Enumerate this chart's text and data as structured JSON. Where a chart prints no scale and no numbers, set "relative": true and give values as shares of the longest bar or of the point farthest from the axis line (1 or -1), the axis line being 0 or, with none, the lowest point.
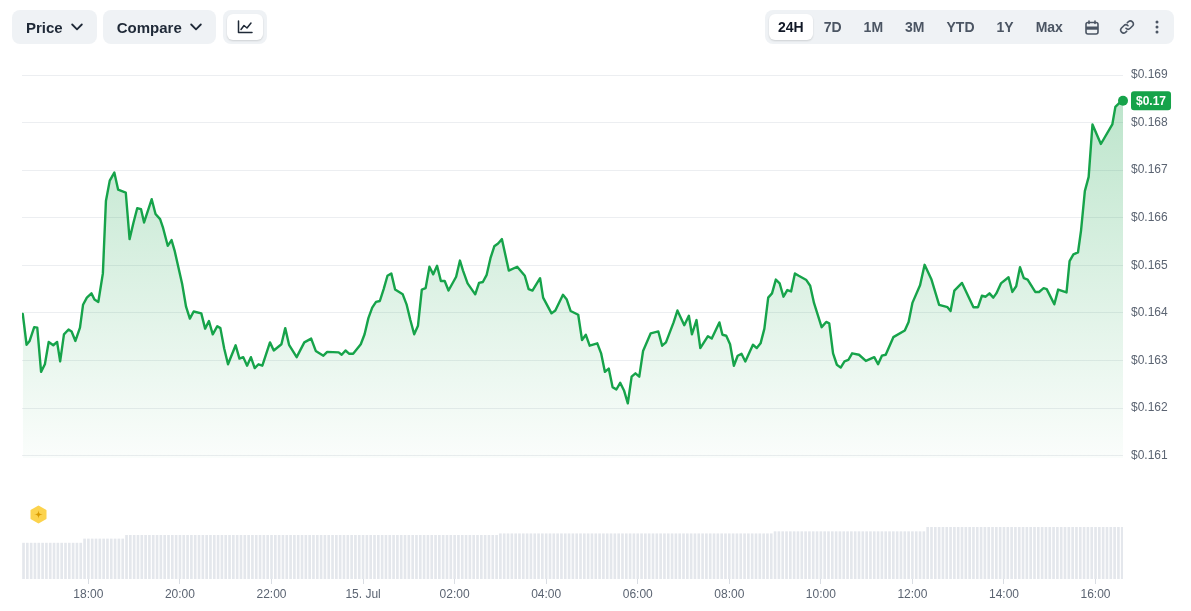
{
  "chart_data": [
    {
      "type": "area",
      "color": "#16a34a",
      "x": [
        "--07-14T16:34",
        "--07-14T16:39",
        "--07-14T16:43",
        "--07-14T16:49",
        "--07-14T16:53",
        "--07-14T16:58",
        "--07-14T17:03",
        "--07-14T17:08",
        "--07-14T17:14",
        "--07-14T17:19",
        "--07-14T17:23",
        "--07-14T17:28",
        "--07-14T17:34",
        "--07-14T17:38",
        "--07-14T17:43",
        "--07-14T17:49",
        "--07-14T17:53",
        "--07-14T17:58",
        "--07-14T18:04",
        "--07-14T18:08",
        "--07-14T18:13",
        "--07-14T18:19",
        "--07-14T18:23",
        "--07-14T18:28",
        "--07-14T18:34",
        "--07-14T18:39",
        "--07-14T18:49",
        "--07-14T18:54",
        "--07-14T18:59",
        "--07-14T19:04",
        "--07-14T19:09",
        "--07-14T19:13",
        "--07-14T19:23",
        "--07-14T19:28",
        "--07-14T19:34",
        "--07-14T19:38",
        "--07-14T19:44",
        "--07-14T19:49",
        "--07-14T19:53",
        "--07-14T20:03",
        "--07-14T20:08",
        "--07-14T20:13",
        "--07-14T20:18",
        "--07-14T20:28",
        "--07-14T20:33",
        "--07-14T20:38",
        "--07-14T20:43",
        "--07-14T20:49",
        "--07-14T20:53",
        "--07-14T20:58",
        "--07-14T21:03",
        "--07-14T21:13",
        "--07-14T21:18",
        "--07-14T21:23",
        "--07-14T21:28",
        "--07-14T21:33",
        "--07-14T21:38",
        "--07-14T21:43",
        "--07-14T21:48",
        "--07-14T21:58",
        "--07-14T22:03",
        "--07-14T22:13",
        "--07-14T22:18",
        "--07-14T22:23",
        "--07-14T22:33",
        "--07-14T22:43",
        "--07-14T22:52",
        "--07-14T22:58",
        "--07-14T23:08",
        "--07-14T23:13",
        "--07-14T23:28",
        "--07-14T23:32",
        "--07-14T23:37",
        "--07-14T23:42",
        "--07-14T23:47",
        "--07-14T23:57",
        "--07-15T00:02",
        "--07-15T00:07",
        "--07-15T00:12",
        "--07-15T00:17",
        "--07-15T00:22",
        "--07-15T00:27",
        "--07-15T00:32",
        "--07-15T00:37",
        "--07-15T00:42",
        "--07-15T00:52",
        "--07-15T00:57",
        "--07-15T01:02",
        "--07-15T01:07",
        "--07-15T01:12",
        "--07-15T01:17",
        "--07-15T01:22",
        "--07-15T01:27",
        "--07-15T01:32",
        "--07-15T01:37",
        "--07-15T01:42",
        "--07-15T01:47",
        "--07-15T01:52",
        "--07-15T02:02",
        "--07-15T02:07",
        "--07-15T02:11",
        "--07-15T02:17",
        "--07-15T02:27",
        "--07-15T02:32",
        "--07-15T02:37",
        "--07-15T02:42",
        "--07-15T02:47",
        "--07-15T02:52",
        "--07-15T02:57",
        "--07-15T03:02",
        "--07-15T03:11",
        "--07-15T03:22",
        "--07-15T03:32",
        "--07-15T03:37",
        "--07-15T03:42",
        "--07-15T03:52",
        "--07-15T03:56",
        "--07-15T04:07",
        "--07-15T04:12",
        "--07-15T04:22",
        "--07-15T04:27",
        "--07-15T04:32",
        "--07-15T04:42",
        "--07-15T04:47",
        "--07-15T04:52",
        "--07-15T04:57",
        "--07-15T05:07",
        "--07-15T05:12",
        "--07-15T05:17",
        "--07-15T05:22",
        "--07-15T05:27",
        "--07-15T05:32",
        "--07-15T05:37",
        "--07-15T05:42",
        "--07-15T05:47",
        "--07-15T05:52",
        "--07-15T05:57",
        "--07-15T06:02",
        "--07-15T06:07",
        "--07-15T06:17",
        "--07-15T06:27",
        "--07-15T06:32",
        "--07-15T06:37",
        "--07-15T06:47",
        "--07-15T06:52",
        "--07-15T07:01",
        "--07-15T07:07",
        "--07-15T07:11",
        "--07-15T07:17",
        "--07-15T07:22",
        "--07-15T07:32",
        "--07-15T07:37",
        "--07-15T07:47",
        "--07-15T07:51",
        "--07-15T07:56",
        "--07-15T08:01",
        "--07-15T08:06",
        "--07-15T08:11",
        "--07-15T08:16",
        "--07-15T08:21",
        "--07-15T08:31",
        "--07-15T08:36",
        "--07-15T08:41",
        "--07-15T08:46",
        "--07-15T08:51",
        "--07-15T08:56",
        "--07-15T09:01",
        "--07-15T09:06",
        "--07-15T09:11",
        "--07-15T09:16",
        "--07-15T09:21",
        "--07-15T09:26",
        "--07-15T09:31",
        "--07-15T09:41",
        "--07-15T09:46",
        "--07-15T09:51",
        "--07-15T10:01",
        "--07-15T10:07",
        "--07-15T10:11",
        "--07-15T10:16",
        "--07-15T10:21",
        "--07-15T10:26",
        "--07-15T10:31",
        "--07-15T10:36",
        "--07-15T10:41",
        "--07-15T10:50",
        "--07-15T10:59",
        "--07-15T11:10",
        "--07-15T11:15",
        "--07-15T11:20",
        "--07-15T11:25",
        "--07-15T11:35",
        "--07-15T11:50",
        "--07-15T11:55",
        "--07-15T12:00",
        "--07-15T12:10",
        "--07-15T12:16",
        "--07-15T12:25",
        "--07-15T12:35",
        "--07-15T12:46",
        "--07-15T12:50",
        "--07-15T12:55",
        "--07-15T13:05",
        "--07-15T13:20",
        "--07-15T13:26",
        "--07-15T13:31",
        "--07-15T13:36",
        "--07-15T13:41",
        "--07-15T13:46",
        "--07-15T13:50",
        "--07-15T13:56",
        "--07-15T14:06",
        "--07-15T14:11",
        "--07-15T14:16",
        "--07-15T14:21",
        "--07-15T14:26",
        "--07-15T14:31",
        "--07-15T14:41",
        "--07-15T14:46",
        "--07-15T14:52",
        "--07-15T14:56",
        "--07-15T15:06",
        "--07-15T15:11",
        "--07-15T15:22",
        "--07-15T15:26",
        "--07-15T15:31",
        "--07-15T15:37",
        "--07-15T15:41",
        "--07-15T15:46",
        "--07-15T15:51",
        "--07-15T15:56",
        "--07-15T16:07",
        "--07-15T16:22",
        "--07-15T16:26",
        "--07-15T16:31",
        "--07-15T16:36"
      ],
      "values": [
        0.16398,
        0.16333,
        0.16341,
        0.1637,
        0.16369,
        0.16276,
        0.16292,
        0.16339,
        0.16332,
        0.16339,
        0.16298,
        0.16355,
        0.16365,
        0.16361,
        0.16341,
        0.16369,
        0.16417,
        0.16432,
        0.16441,
        0.16428,
        0.16423,
        0.16483,
        0.16635,
        0.16678,
        0.16695,
        0.16659,
        0.16653,
        0.16555,
        0.16589,
        0.1662,
        0.16618,
        0.1659,
        0.16639,
        0.16608,
        0.16597,
        0.16578,
        0.16541,
        0.16553,
        0.16531,
        0.1646,
        0.16413,
        0.16388,
        0.16403,
        0.16399,
        0.16367,
        0.16383,
        0.16355,
        0.16372,
        0.16368,
        0.16325,
        0.16292,
        0.16332,
        0.16304,
        0.16307,
        0.16289,
        0.16307,
        0.16284,
        0.16292,
        0.16289,
        0.16338,
        0.16321,
        0.16334,
        0.16368,
        0.16333,
        0.16307,
        0.16338,
        0.16346,
        0.1632,
        0.1631,
        0.16318,
        0.16317,
        0.16312,
        0.16321,
        0.16314,
        0.16314,
        0.16334,
        0.16355,
        0.16389,
        0.16411,
        0.16423,
        0.16425,
        0.1645,
        0.16478,
        0.16483,
        0.16449,
        0.16439,
        0.16418,
        0.16385,
        0.16355,
        0.16373,
        0.16449,
        0.16452,
        0.16497,
        0.16481,
        0.16499,
        0.16467,
        0.16467,
        0.16447,
        0.16476,
        0.1651,
        0.16489,
        0.16462,
        0.16439,
        0.16463,
        0.16465,
        0.1648,
        0.16515,
        0.1654,
        0.16546,
        0.16555,
        0.16489,
        0.16497,
        0.16478,
        0.1645,
        0.16447,
        0.16473,
        0.16432,
        0.16399,
        0.16405,
        0.16438,
        0.16428,
        0.16404,
        0.16396,
        0.16343,
        0.16354,
        0.16331,
        0.16336,
        0.16315,
        0.16276,
        0.16283,
        0.16244,
        0.16239,
        0.16253,
        0.16237,
        0.1621,
        0.16266,
        0.16273,
        0.16266,
        0.1632,
        0.16357,
        0.16361,
        0.16331,
        0.16338,
        0.1638,
        0.16405,
        0.16374,
        0.16394,
        0.16355,
        0.16385,
        0.16326,
        0.16351,
        0.16346,
        0.1638,
        0.16354,
        0.16352,
        0.16334,
        0.16289,
        0.1631,
        0.16314,
        0.16298,
        0.16333,
        0.16326,
        0.16336,
        0.16367,
        0.16432,
        0.16441,
        0.1647,
        0.16462,
        0.16434,
        0.16448,
        0.16445,
        0.16483,
        0.16478,
        0.16469,
        0.16457,
        0.16421,
        0.1637,
        0.16381,
        0.16378,
        0.16315,
        0.16291,
        0.16285,
        0.16298,
        0.16301,
        0.16315,
        0.16312,
        0.16299,
        0.16307,
        0.16292,
        0.1631,
        0.16312,
        0.16349,
        0.16363,
        0.16381,
        0.16421,
        0.16458,
        0.16501,
        0.1647,
        0.16417,
        0.16412,
        0.16404,
        0.16447,
        0.16463,
        0.16412,
        0.16412,
        0.16436,
        0.16434,
        0.16441,
        0.16432,
        0.16441,
        0.16462,
        0.16475,
        0.16444,
        0.16456,
        0.16496,
        0.16473,
        0.1647,
        0.16444,
        0.16444,
        0.16452,
        0.1645,
        0.16418,
        0.16449,
        0.16443,
        0.16509,
        0.16523,
        0.16527,
        0.16573,
        0.16656,
        0.16686,
        0.16796,
        0.16755,
        0.16796,
        0.16833,
        0.16841,
        0.16846
      ],
      "xlim": [
        "--07-14T16:33",
        "--07-15T16:36"
      ],
      "ylim": [
        0.16095,
        0.169
      ],
      "yticks": [
        {
          "value": 0.161,
          "label": "$0.161"
        },
        {
          "value": 0.162,
          "label": "$0.162"
        },
        {
          "value": 0.163,
          "label": "$0.163"
        },
        {
          "value": 0.164,
          "label": "$0.164"
        },
        {
          "value": 0.165,
          "label": "$0.165"
        },
        {
          "value": 0.166,
          "label": "$0.166"
        },
        {
          "value": 0.167,
          "label": "$0.167"
        },
        {
          "value": 0.168,
          "label": "$0.168"
        },
        {
          "value": 0.169,
          "label": "$0.169"
        }
      ],
      "grid": "y",
      "tick_labels": "y",
      "annotations": [
        "Price",
        "Compare",
        "24H",
        "7D",
        "1M",
        "3M",
        "YTD",
        "1Y",
        "Max",
        {
          "text": "$0.17",
          "x": "--07-15T16:36",
          "y": 0.16846
        }
      ]
    },
    {
      "type": "bar",
      "relative": true,
      "color": "#e4e7ec",
      "x": [
        "--07-14T16:35",
        "--07-14T16:40",
        "--07-14T16:45",
        "--07-14T16:50",
        "--07-14T16:55",
        "--07-14T17:00",
        "--07-14T17:05",
        "--07-14T17:10",
        "--07-14T17:15",
        "--07-14T17:20",
        "--07-14T17:25",
        "--07-14T17:30",
        "--07-14T17:35",
        "--07-14T17:40",
        "--07-14T17:45",
        "--07-14T17:50",
        "--07-14T17:55",
        "--07-14T18:00",
        "--07-14T18:05",
        "--07-14T18:10",
        "--07-14T18:15",
        "--07-14T18:20",
        "--07-14T18:25",
        "--07-14T18:30",
        "--07-14T18:35",
        "--07-14T18:40",
        "--07-14T18:45",
        "--07-14T18:50",
        "--07-14T18:55",
        "--07-14T19:00",
        "--07-14T19:05",
        "--07-14T19:10",
        "--07-14T19:15",
        "--07-14T19:20",
        "--07-14T19:25",
        "--07-14T19:30",
        "--07-14T19:35",
        "--07-14T19:40",
        "--07-14T19:45",
        "--07-14T19:50",
        "--07-14T19:55",
        "--07-14T20:00",
        "--07-14T20:05",
        "--07-14T20:10",
        "--07-14T20:15",
        "--07-14T20:20",
        "--07-14T20:25",
        "--07-14T20:30",
        "--07-14T20:35",
        "--07-14T20:40",
        "--07-14T20:45",
        "--07-14T20:50",
        "--07-14T20:55",
        "--07-14T21:00",
        "--07-14T21:05",
        "--07-14T21:10",
        "--07-14T21:15",
        "--07-14T21:20",
        "--07-14T21:25",
        "--07-14T21:30",
        "--07-14T21:35",
        "--07-14T21:40",
        "--07-14T21:45",
        "--07-14T21:50",
        "--07-14T21:55",
        "--07-14T22:00",
        "--07-14T22:05",
        "--07-14T22:10",
        "--07-14T22:15",
        "--07-14T22:20",
        "--07-14T22:25",
        "--07-14T22:30",
        "--07-14T22:35",
        "--07-14T22:40",
        "--07-14T22:45",
        "--07-14T22:50",
        "--07-14T22:55",
        "--07-14T23:00",
        "--07-14T23:05",
        "--07-14T23:10",
        "--07-14T23:15",
        "--07-14T23:20",
        "--07-14T23:25",
        "--07-14T23:30",
        "--07-14T23:35",
        "--07-14T23:40",
        "--07-14T23:45",
        "--07-14T23:50",
        "--07-14T23:55",
        "--07-15T00:00",
        "--07-15T00:05",
        "--07-15T00:10",
        "--07-15T00:15",
        "--07-15T00:20",
        "--07-15T00:25",
        "--07-15T00:30",
        "--07-15T00:35",
        "--07-15T00:40",
        "--07-15T00:45",
        "--07-15T00:50",
        "--07-15T00:55",
        "--07-15T01:00",
        "--07-15T01:05",
        "--07-15T01:10",
        "--07-15T01:15",
        "--07-15T01:20",
        "--07-15T01:25",
        "--07-15T01:30",
        "--07-15T01:35",
        "--07-15T01:40",
        "--07-15T01:45",
        "--07-15T01:50",
        "--07-15T01:55",
        "--07-15T02:00",
        "--07-15T02:05",
        "--07-15T02:10",
        "--07-15T02:15",
        "--07-15T02:20",
        "--07-15T02:25",
        "--07-15T02:30",
        "--07-15T02:35",
        "--07-15T02:40",
        "--07-15T02:45",
        "--07-15T02:50",
        "--07-15T02:55",
        "--07-15T03:00",
        "--07-15T03:05",
        "--07-15T03:10",
        "--07-15T03:15",
        "--07-15T03:20",
        "--07-15T03:25",
        "--07-15T03:30",
        "--07-15T03:35",
        "--07-15T03:40",
        "--07-15T03:45",
        "--07-15T03:50",
        "--07-15T03:55",
        "--07-15T04:00",
        "--07-15T04:05",
        "--07-15T04:10",
        "--07-15T04:15",
        "--07-15T04:20",
        "--07-15T04:25",
        "--07-15T04:30",
        "--07-15T04:35",
        "--07-15T04:40",
        "--07-15T04:45",
        "--07-15T04:50",
        "--07-15T04:55",
        "--07-15T05:00",
        "--07-15T05:05",
        "--07-15T05:10",
        "--07-15T05:15",
        "--07-15T05:20",
        "--07-15T05:25",
        "--07-15T05:30",
        "--07-15T05:35",
        "--07-15T05:40",
        "--07-15T05:45",
        "--07-15T05:50",
        "--07-15T05:55",
        "--07-15T06:00",
        "--07-15T06:05",
        "--07-15T06:10",
        "--07-15T06:15",
        "--07-15T06:20",
        "--07-15T06:25",
        "--07-15T06:30",
        "--07-15T06:35",
        "--07-15T06:40",
        "--07-15T06:45",
        "--07-15T06:50",
        "--07-15T06:55",
        "--07-15T07:00",
        "--07-15T07:05",
        "--07-15T07:10",
        "--07-15T07:15",
        "--07-15T07:20",
        "--07-15T07:25",
        "--07-15T07:30",
        "--07-15T07:35",
        "--07-15T07:40",
        "--07-15T07:45",
        "--07-15T07:50",
        "--07-15T07:55",
        "--07-15T08:00",
        "--07-15T08:05",
        "--07-15T08:10",
        "--07-15T08:15",
        "--07-15T08:20",
        "--07-15T08:25",
        "--07-15T08:30",
        "--07-15T08:35",
        "--07-15T08:40",
        "--07-15T08:45",
        "--07-15T08:50",
        "--07-15T08:55",
        "--07-15T09:00",
        "--07-15T09:05",
        "--07-15T09:10",
        "--07-15T09:15",
        "--07-15T09:20",
        "--07-15T09:25",
        "--07-15T09:30",
        "--07-15T09:35",
        "--07-15T09:40",
        "--07-15T09:45",
        "--07-15T09:50",
        "--07-15T09:55",
        "--07-15T10:00",
        "--07-15T10:05",
        "--07-15T10:10",
        "--07-15T10:15",
        "--07-15T10:20",
        "--07-15T10:25",
        "--07-15T10:30",
        "--07-15T10:35",
        "--07-15T10:40",
        "--07-15T10:45",
        "--07-15T10:50",
        "--07-15T10:55",
        "--07-15T11:00",
        "--07-15T11:05",
        "--07-15T11:10",
        "--07-15T11:15",
        "--07-15T11:20",
        "--07-15T11:25",
        "--07-15T11:30",
        "--07-15T11:35",
        "--07-15T11:40",
        "--07-15T11:45",
        "--07-15T11:50",
        "--07-15T11:55",
        "--07-15T12:00",
        "--07-15T12:05",
        "--07-15T12:10",
        "--07-15T12:15",
        "--07-15T12:20",
        "--07-15T12:25",
        "--07-15T12:30",
        "--07-15T12:35",
        "--07-15T12:40",
        "--07-15T12:45",
        "--07-15T12:50",
        "--07-15T12:55",
        "--07-15T13:00",
        "--07-15T13:05",
        "--07-15T13:10",
        "--07-15T13:15",
        "--07-15T13:20",
        "--07-15T13:25",
        "--07-15T13:30",
        "--07-15T13:35",
        "--07-15T13:40",
        "--07-15T13:45",
        "--07-15T13:50",
        "--07-15T13:55",
        "--07-15T14:00",
        "--07-15T14:05",
        "--07-15T14:10",
        "--07-15T14:15",
        "--07-15T14:20",
        "--07-15T14:25",
        "--07-15T14:30",
        "--07-15T14:35",
        "--07-15T14:40",
        "--07-15T14:45",
        "--07-15T14:50",
        "--07-15T14:55",
        "--07-15T15:00",
        "--07-15T15:05",
        "--07-15T15:10",
        "--07-15T15:15",
        "--07-15T15:20",
        "--07-15T15:25",
        "--07-15T15:30",
        "--07-15T15:35",
        "--07-15T15:40",
        "--07-15T15:45",
        "--07-15T15:50",
        "--07-15T15:55",
        "--07-15T16:00",
        "--07-15T16:05",
        "--07-15T16:10",
        "--07-15T16:15",
        "--07-15T16:20",
        "--07-15T16:25",
        "--07-15T16:30",
        "--07-15T16:35"
      ],
      "values": [
        0.69,
        0.69,
        0.69,
        0.69,
        0.69,
        0.69,
        0.69,
        0.69,
        0.69,
        0.69,
        0.69,
        0.69,
        0.69,
        0.69,
        0.69,
        0.69,
        0.77,
        0.77,
        0.77,
        0.77,
        0.77,
        0.77,
        0.77,
        0.77,
        0.77,
        0.77,
        0.77,
        0.84,
        0.84,
        0.84,
        0.84,
        0.84,
        0.84,
        0.84,
        0.84,
        0.84,
        0.84,
        0.84,
        0.84,
        0.84,
        0.84,
        0.84,
        0.84,
        0.84,
        0.84,
        0.84,
        0.84,
        0.84,
        0.84,
        0.84,
        0.84,
        0.84,
        0.84,
        0.84,
        0.84,
        0.84,
        0.84,
        0.84,
        0.84,
        0.84,
        0.84,
        0.84,
        0.84,
        0.84,
        0.84,
        0.84,
        0.84,
        0.84,
        0.84,
        0.84,
        0.84,
        0.84,
        0.84,
        0.84,
        0.84,
        0.84,
        0.84,
        0.84,
        0.84,
        0.84,
        0.84,
        0.84,
        0.84,
        0.84,
        0.84,
        0.84,
        0.84,
        0.84,
        0.84,
        0.84,
        0.84,
        0.84,
        0.84,
        0.84,
        0.84,
        0.84,
        0.84,
        0.84,
        0.84,
        0.84,
        0.84,
        0.84,
        0.84,
        0.84,
        0.84,
        0.84,
        0.84,
        0.84,
        0.84,
        0.84,
        0.84,
        0.84,
        0.84,
        0.84,
        0.84,
        0.84,
        0.84,
        0.84,
        0.84,
        0.84,
        0.84,
        0.84,
        0.84,
        0.84,
        0.84,
        0.87,
        0.87,
        0.87,
        0.87,
        0.87,
        0.87,
        0.87,
        0.87,
        0.87,
        0.87,
        0.87,
        0.87,
        0.87,
        0.87,
        0.87,
        0.87,
        0.87,
        0.87,
        0.87,
        0.87,
        0.87,
        0.87,
        0.87,
        0.87,
        0.87,
        0.87,
        0.87,
        0.87,
        0.87,
        0.87,
        0.87,
        0.87,
        0.87,
        0.87,
        0.87,
        0.87,
        0.87,
        0.87,
        0.87,
        0.87,
        0.87,
        0.87,
        0.87,
        0.87,
        0.87,
        0.87,
        0.87,
        0.87,
        0.87,
        0.87,
        0.87,
        0.87,
        0.87,
        0.87,
        0.87,
        0.87,
        0.87,
        0.87,
        0.87,
        0.87,
        0.87,
        0.87,
        0.87,
        0.87,
        0.87,
        0.87,
        0.87,
        0.87,
        0.87,
        0.87,
        0.87,
        0.87,
        0.91,
        0.91,
        0.91,
        0.91,
        0.91,
        0.91,
        0.91,
        0.91,
        0.91,
        0.91,
        0.91,
        0.91,
        0.91,
        0.91,
        0.91,
        0.91,
        0.91,
        0.91,
        0.91,
        0.91,
        0.91,
        0.91,
        0.91,
        0.91,
        0.91,
        0.91,
        0.91,
        0.91,
        0.91,
        0.91,
        0.91,
        0.91,
        0.91,
        0.91,
        0.91,
        0.91,
        0.91,
        0.91,
        0.91,
        0.91,
        1,
        1,
        1,
        1,
        1,
        1,
        1,
        1,
        1,
        1,
        1,
        1,
        1,
        1,
        1,
        1,
        1,
        1,
        1,
        1,
        1,
        1,
        1,
        1,
        1,
        1,
        1,
        1,
        1,
        1,
        1,
        1,
        1,
        1,
        1,
        1,
        1,
        1,
        1,
        1,
        1,
        1,
        1,
        1,
        1,
        1,
        1,
        1,
        1,
        1,
        1,
        1
      ],
      "xlim": [
        "--07-14T16:33",
        "--07-15T16:36"
      ],
      "xticks": [
        {
          "value": "--07-14T18:00",
          "label": "18:00"
        },
        {
          "value": "--07-14T20:00",
          "label": "20:00"
        },
        {
          "value": "--07-14T22:00",
          "label": "22:00"
        },
        {
          "value": "--07-15T00:00",
          "label": "15. Jul"
        },
        {
          "value": "--07-15T02:00",
          "label": "02:00"
        },
        {
          "value": "--07-15T04:00",
          "label": "04:00"
        },
        {
          "value": "--07-15T06:00",
          "label": "06:00"
        },
        {
          "value": "--07-15T08:00",
          "label": "08:00"
        },
        {
          "value": "--07-15T10:00",
          "label": "10:00"
        },
        {
          "value": "--07-15T12:00",
          "label": "12:00"
        },
        {
          "value": "--07-15T14:00",
          "label": "14:00"
        },
        {
          "value": "--07-15T16:00",
          "label": "16:00"
        }
      ],
      "tick_labels": "x"
    }
  ]
}
